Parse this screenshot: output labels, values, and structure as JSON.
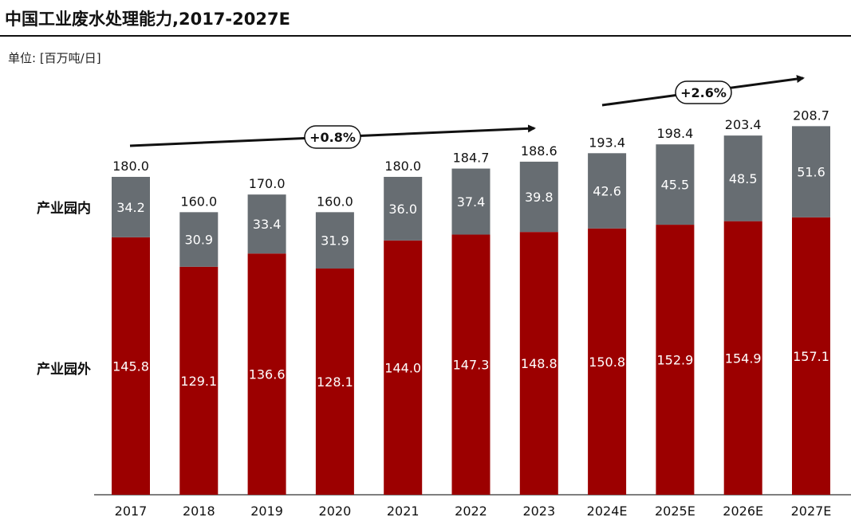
{
  "header": {
    "title": "中国工业废水处理能力,2017-2027E",
    "unit": "单位: [百万吨/日]"
  },
  "chart_data": {
    "type": "bar",
    "stacked": true,
    "categories": [
      "2017",
      "2018",
      "2019",
      "2020",
      "2021",
      "2022",
      "2023",
      "2024E",
      "2025E",
      "2026E",
      "2027E"
    ],
    "series": [
      {
        "name": "产业园外",
        "color": "#9c0000",
        "label_color": "#ffffff",
        "values": [
          145.8,
          129.1,
          136.6,
          128.1,
          144.0,
          147.3,
          148.8,
          150.8,
          152.9,
          154.9,
          157.1
        ],
        "labels": [
          "145.8",
          "129.1",
          "136.6",
          "128.1",
          "144.0",
          "147.3",
          "148.8",
          "150.8",
          "152.9",
          "154.9",
          "157.1"
        ]
      },
      {
        "name": "产业园内",
        "color": "#676d72",
        "label_color": "#ffffff",
        "values": [
          34.2,
          30.9,
          33.4,
          31.9,
          36.0,
          37.4,
          39.8,
          42.6,
          45.5,
          48.5,
          51.6
        ],
        "labels": [
          "34.2",
          "30.9",
          "33.4",
          "31.9",
          "36.0",
          "37.4",
          "39.8",
          "42.6",
          "45.5",
          "48.5",
          "51.6"
        ]
      }
    ],
    "totals": [
      "180.0",
      "160.0",
      "170.0",
      "160.0",
      "180.0",
      "184.7",
      "188.6",
      "193.4",
      "198.4",
      "203.4",
      "208.7"
    ],
    "total_values": [
      180.0,
      160.0,
      170.0,
      160.0,
      180.0,
      184.7,
      188.6,
      193.4,
      198.4,
      203.4,
      208.7
    ],
    "ylim": [
      0,
      240
    ],
    "grid": false,
    "legend": "left-inline",
    "annotations": [
      {
        "label": "+0.8%",
        "from": "2017",
        "to": "2023"
      },
      {
        "label": "+2.6%",
        "from": "2024E",
        "to": "2027E"
      }
    ]
  }
}
